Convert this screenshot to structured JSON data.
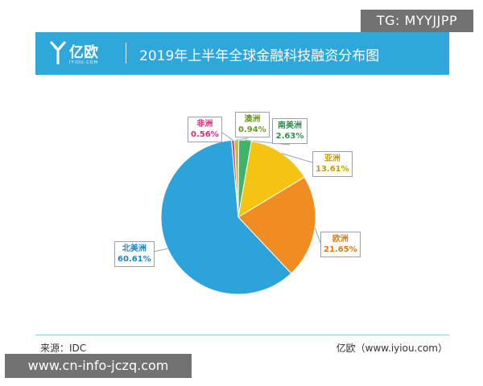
{
  "watermark_top": "TG: MYYJJPP",
  "watermark_bottom": "www.cn-info-jczq.com",
  "banner": {
    "logo_name": "亿欧",
    "logo_sub": "IYIOU.COM",
    "title": "2019年上半年全球金融科技融资分布图",
    "color": "#2fa7db"
  },
  "footer": {
    "source": "来源：IDC",
    "credit": "亿欧（www.iyiou.com）"
  },
  "chart_data": {
    "type": "pie",
    "title": "2019年上半年全球金融科技融资分布图",
    "start_angle_deg": -3.0,
    "slices": [
      {
        "name": "澳洲",
        "pct_label": "0.94%",
        "value": 0.94,
        "color": "#a9cf3a",
        "label_color": "#6a9a1f"
      },
      {
        "name": "南美洲",
        "pct_label": "2.63%",
        "value": 2.63,
        "color": "#3fb36a",
        "label_color": "#2f8f4f"
      },
      {
        "name": "亚洲",
        "pct_label": "13.61%",
        "value": 13.61,
        "color": "#f5c412",
        "label_color": "#c99a00"
      },
      {
        "name": "欧洲",
        "pct_label": "21.65%",
        "value": 21.65,
        "color": "#f08c21",
        "label_color": "#e07a10"
      },
      {
        "name": "北美洲",
        "pct_label": "60.61%",
        "value": 60.61,
        "color": "#2ea3db",
        "label_color": "#1d86c0"
      },
      {
        "name": "非洲",
        "pct_label": "0.56%",
        "value": 0.56,
        "color": "#e23b7f",
        "label_color": "#d12f78"
      }
    ]
  }
}
